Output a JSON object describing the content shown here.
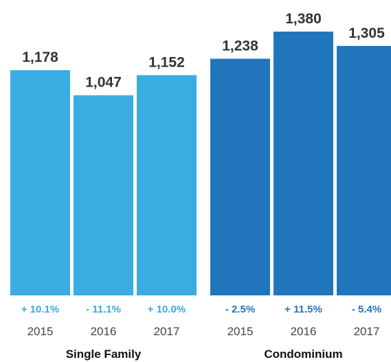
{
  "chart_data": {
    "type": "bar",
    "groups": [
      {
        "name": "Single Family",
        "color": "#39ace2",
        "bars": [
          {
            "year": "2015",
            "value": 1178,
            "label": "1,178",
            "change": "+ 10.1%"
          },
          {
            "year": "2016",
            "value": 1047,
            "label": "1,047",
            "change": "- 11.1%"
          },
          {
            "year": "2017",
            "value": 1152,
            "label": "1,152",
            "change": "+ 10.0%"
          }
        ]
      },
      {
        "name": "Condominium",
        "color": "#2176bb",
        "bars": [
          {
            "year": "2015",
            "value": 1238,
            "label": "1,238",
            "change": "- 2.5%"
          },
          {
            "year": "2016",
            "value": 1380,
            "label": "1,380",
            "change": "+ 11.5%"
          },
          {
            "year": "2017",
            "value": 1305,
            "label": "1,305",
            "change": "- 5.4%"
          }
        ]
      }
    ],
    "ylim": [
      0,
      1380
    ],
    "grid": false,
    "legend": "none"
  }
}
